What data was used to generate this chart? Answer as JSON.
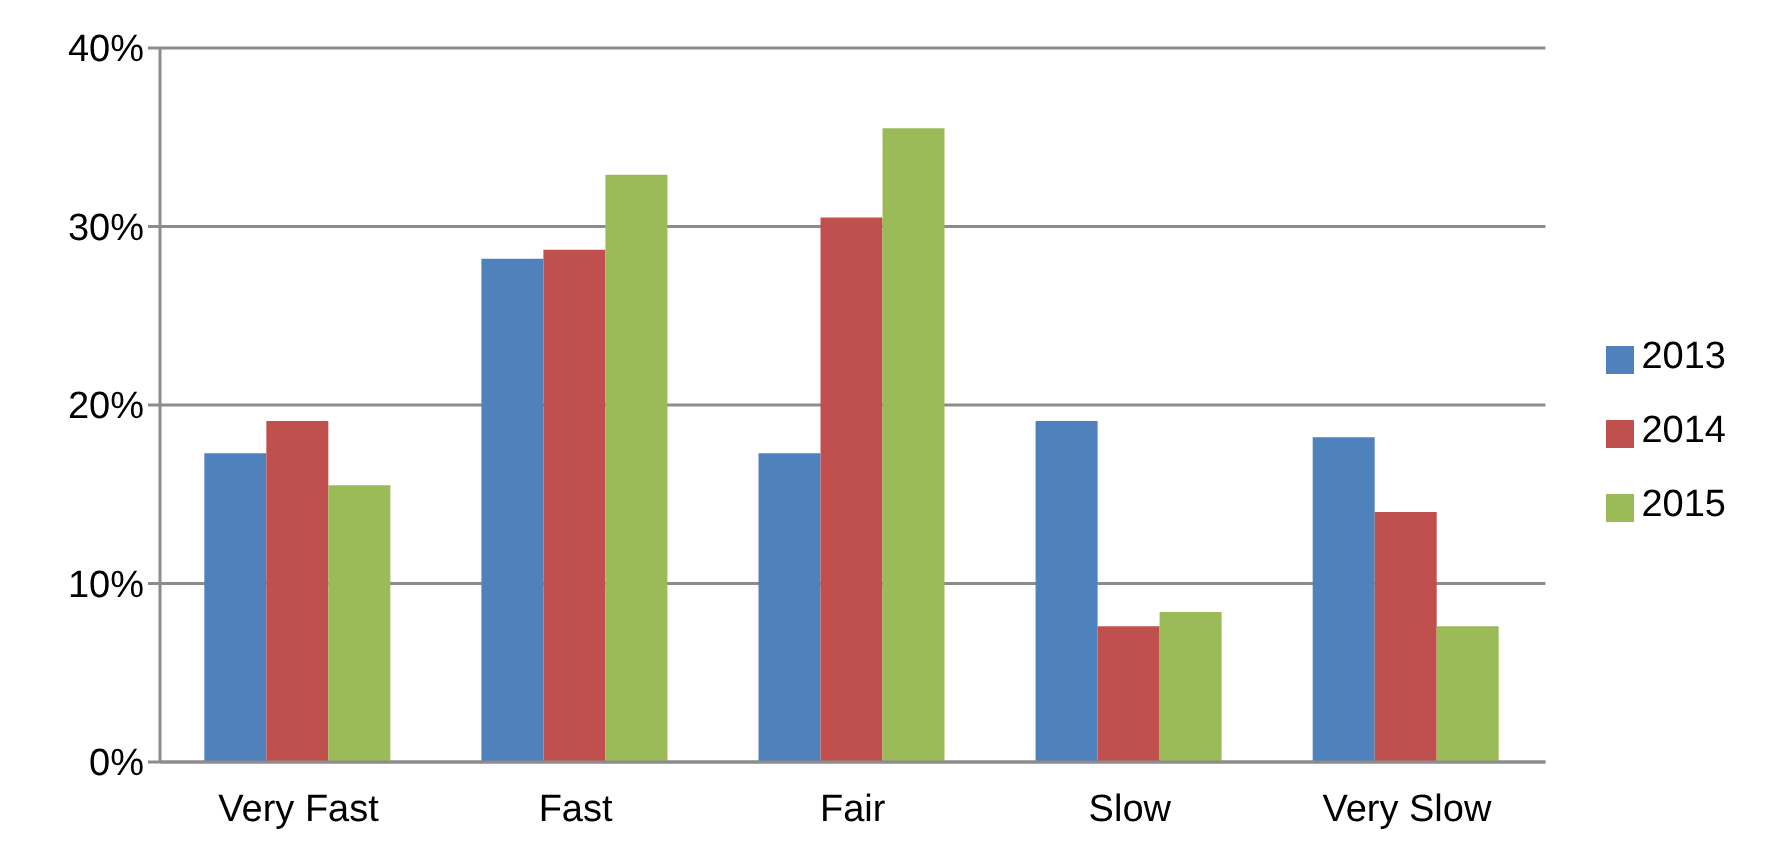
{
  "chart_data": {
    "type": "bar",
    "categories": [
      "Very Fast",
      "Fast",
      "Fair",
      "Slow",
      "Very Slow"
    ],
    "series": [
      {
        "name": "2013",
        "color": "#4f81bd",
        "values": [
          17.3,
          28.2,
          17.3,
          19.1,
          18.2
        ]
      },
      {
        "name": "2014",
        "color": "#c0504d",
        "values": [
          19.1,
          28.7,
          30.5,
          7.6,
          14.0
        ]
      },
      {
        "name": "2015",
        "color": "#9bbb59",
        "values": [
          15.5,
          32.9,
          35.5,
          8.4,
          7.6
        ]
      }
    ],
    "ylim": [
      0,
      40
    ],
    "yticks": [
      {
        "value": 0,
        "label": "0%"
      },
      {
        "value": 10,
        "label": "10%"
      },
      {
        "value": 20,
        "label": "20%"
      },
      {
        "value": 30,
        "label": "30%"
      },
      {
        "value": 40,
        "label": "40%"
      }
    ],
    "grid": "y",
    "legend": "right"
  }
}
